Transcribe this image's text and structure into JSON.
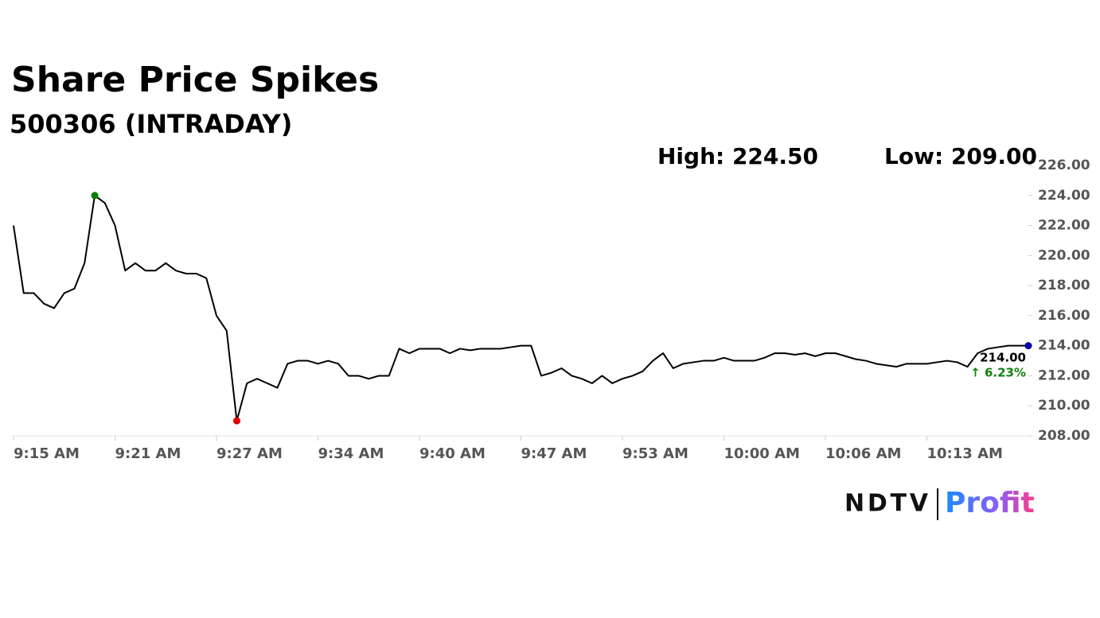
{
  "chart_data": {
    "type": "line",
    "title": "Share Price Spikes",
    "subtitle": "500306 (INTRADAY)",
    "annotations": {
      "high": "High: 224.50",
      "low": "Low: 209.00",
      "last_price": "214.00",
      "change": "↑ 6.23%"
    },
    "values": [
      222,
      217.5,
      217.5,
      216.8,
      216.5,
      217.5,
      217.8,
      219.5,
      224,
      223.5,
      222,
      219,
      219.5,
      219,
      219,
      219.5,
      219,
      218.8,
      218.8,
      218.5,
      216,
      215,
      209,
      211.5,
      211.8,
      211.5,
      211.2,
      212.8,
      213,
      213,
      212.8,
      213,
      212.8,
      212,
      212,
      211.8,
      212,
      212,
      213.8,
      213.5,
      213.8,
      213.8,
      213.8,
      213.5,
      213.8,
      213.7,
      213.8,
      213.8,
      213.8,
      213.9,
      214,
      214,
      212,
      212.2,
      212.5,
      212,
      211.8,
      211.5,
      212,
      211.5,
      211.8,
      212,
      212.3,
      213,
      213.5,
      212.5,
      212.8,
      212.9,
      213,
      213,
      213.2,
      213,
      213,
      213,
      213.2,
      213.5,
      213.5,
      213.4,
      213.5,
      213.3,
      213.5,
      213.5,
      213.3,
      213.1,
      213,
      212.8,
      212.7,
      212.6,
      212.8,
      212.8,
      212.8,
      212.9,
      213,
      212.9,
      212.6,
      213.5,
      213.8,
      213.9,
      214,
      214,
      214
    ],
    "color": "#000000",
    "marker_colors": {
      "high": "#008000",
      "low": "#e00000",
      "last": "#0000b0"
    },
    "xlim": [
      0,
      100
    ],
    "xticks": [
      {
        "value": 0,
        "label": "9:15 AM"
      },
      {
        "value": 10,
        "label": "9:21 AM"
      },
      {
        "value": 20,
        "label": "9:27 AM"
      },
      {
        "value": 30,
        "label": "9:34 AM"
      },
      {
        "value": 40,
        "label": "9:40 AM"
      },
      {
        "value": 50,
        "label": "9:47 AM"
      },
      {
        "value": 60,
        "label": "9:53 AM"
      },
      {
        "value": 70,
        "label": "10:00 AM"
      },
      {
        "value": 80,
        "label": "10:06 AM"
      },
      {
        "value": 90,
        "label": "10:13 AM"
      }
    ],
    "ylim": [
      208,
      226
    ],
    "yticks": [
      {
        "value": 208,
        "label": "208.00"
      },
      {
        "value": 210,
        "label": "210.00"
      },
      {
        "value": 212,
        "label": "212.00"
      },
      {
        "value": 214,
        "label": "214.00"
      },
      {
        "value": 216,
        "label": "216.00"
      },
      {
        "value": 218,
        "label": "218.00"
      },
      {
        "value": 220,
        "label": "220.00"
      },
      {
        "value": 222,
        "label": "222.00"
      },
      {
        "value": 224,
        "label": "224.00"
      },
      {
        "value": 226,
        "label": "226.00"
      }
    ],
    "grid": false
  },
  "logo": {
    "brand": "NDTV",
    "product": "Profit"
  }
}
